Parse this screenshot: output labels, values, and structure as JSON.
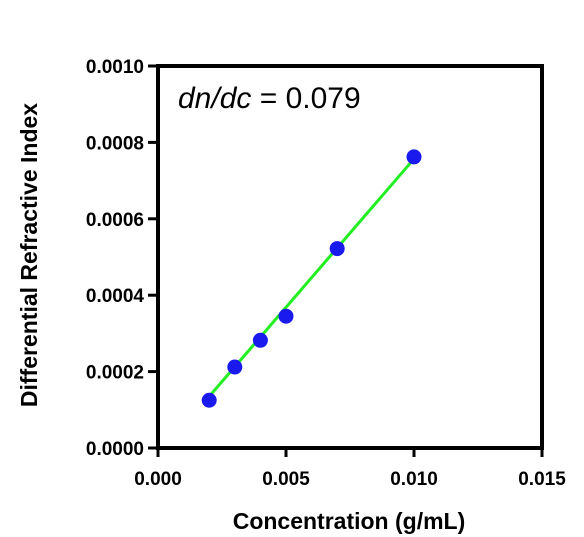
{
  "chart_data": {
    "type": "scatter",
    "xlabel": "Concentration (g/mL)",
    "ylabel": "Differential Refractive Index",
    "xlim": [
      0.0,
      0.015
    ],
    "ylim": [
      0.0,
      0.001
    ],
    "x_ticks": [
      "0.000",
      "0.005",
      "0.010",
      "0.015"
    ],
    "y_ticks": [
      "0.0000",
      "0.0002",
      "0.0004",
      "0.0006",
      "0.0008",
      "0.0010"
    ],
    "x_tick_values": [
      0.0,
      0.005,
      0.01,
      0.015
    ],
    "y_tick_values": [
      0.0,
      0.0002,
      0.0004,
      0.0006,
      0.0008,
      0.001
    ],
    "points": {
      "x": [
        0.002,
        0.003,
        0.004,
        0.005,
        0.007,
        0.01
      ],
      "y": [
        0.000125,
        0.000212,
        0.000282,
        0.000345,
        0.000522,
        0.000762
      ],
      "color": "#1a1aee"
    },
    "fit_line": {
      "x": [
        0.002,
        0.01
      ],
      "y": [
        0.000135,
        0.000757
      ],
      "color": "#22ee22"
    },
    "annotation": {
      "italic_part": "dn/dc",
      "rest": " = 0.079"
    },
    "grid": false
  }
}
